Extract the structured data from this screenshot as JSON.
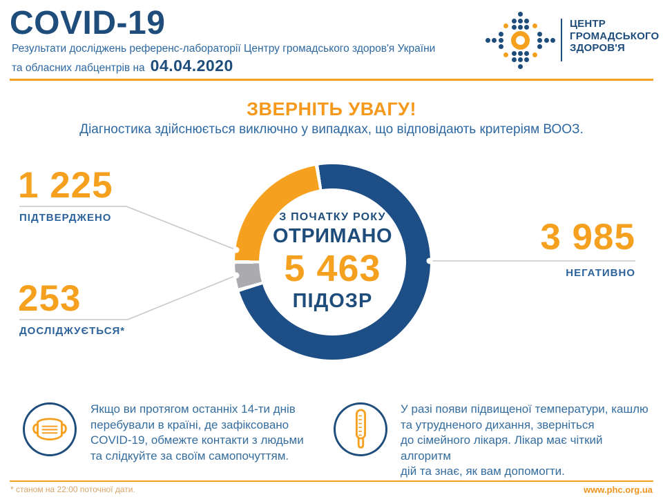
{
  "colors": {
    "navy": "#1e4d7c",
    "donut_blue": "#1d4e85",
    "orange": "#f5a01e",
    "slice_gray": "#ababaf",
    "text_blue": "#356d9f"
  },
  "header": {
    "title": "COVID-19",
    "subtitle_line1": "Результати досліджень референс-лабораторії Центру громадського здоров'я України",
    "subtitle_line2": "та обласних лабцентрів на",
    "date": "04.04.2020",
    "logo_wordmark": [
      "ЦЕНТР",
      "ГРОМАДСЬКОГО",
      "ЗДОРОВ'Я"
    ]
  },
  "notice": {
    "title": "ЗВЕРНІТЬ УВАГУ!",
    "subtitle": "Діагностика здійснюється виключно у випадках, що відповідають критеріям ВООЗ."
  },
  "chart_data": {
    "type": "pie",
    "title": "З початку року отримано 5 463 підозр",
    "total": 5463,
    "center": {
      "line1": "З ПОЧАТКУ РОКУ",
      "line2": "ОТРИМАНО",
      "value": "5 463",
      "line3": "ПІДОЗР"
    },
    "slices": [
      {
        "label": "ПІДТВЕРДЖЕНО",
        "value": 1225,
        "display": "1 225",
        "color": "#f5a01e"
      },
      {
        "label": "ДОСЛІДЖУЄТЬСЯ*",
        "value": 253,
        "display": "253",
        "color": "#ababaf"
      },
      {
        "label": "НЕГАТИВНО",
        "value": 3985,
        "display": "3 985",
        "color": "#1d4e85"
      }
    ],
    "layout": {
      "start_angle_deg": 350.7,
      "clockwise_order": [
        "НЕГАТИВНО",
        "ДОСЛІДЖУЄТЬСЯ*",
        "ПІДТВЕРДЖЕНО"
      ],
      "gap_deg": 2.2,
      "legend_position": "callouts"
    }
  },
  "advice": [
    {
      "icon": "mask-icon",
      "lines": [
        "Якщо ви протягом останніх 14-ти днів",
        "перебували в країні, де зафіксовано",
        "COVID-19, обмежте контакти з людьми",
        "та слідкуйте за своїм самопочуттям."
      ]
    },
    {
      "icon": "thermometer-icon",
      "lines": [
        "У разі появи підвищеної температури, кашлю",
        "та утрудненого дихання, зверніться",
        "до сімейного лікаря. Лікар має чіткий алгоритм",
        "дій та знає, як вам допомогти."
      ]
    }
  ],
  "footer": {
    "note": "* станом на 22:00 поточної дати.",
    "website": "www.phc.org.ua"
  }
}
